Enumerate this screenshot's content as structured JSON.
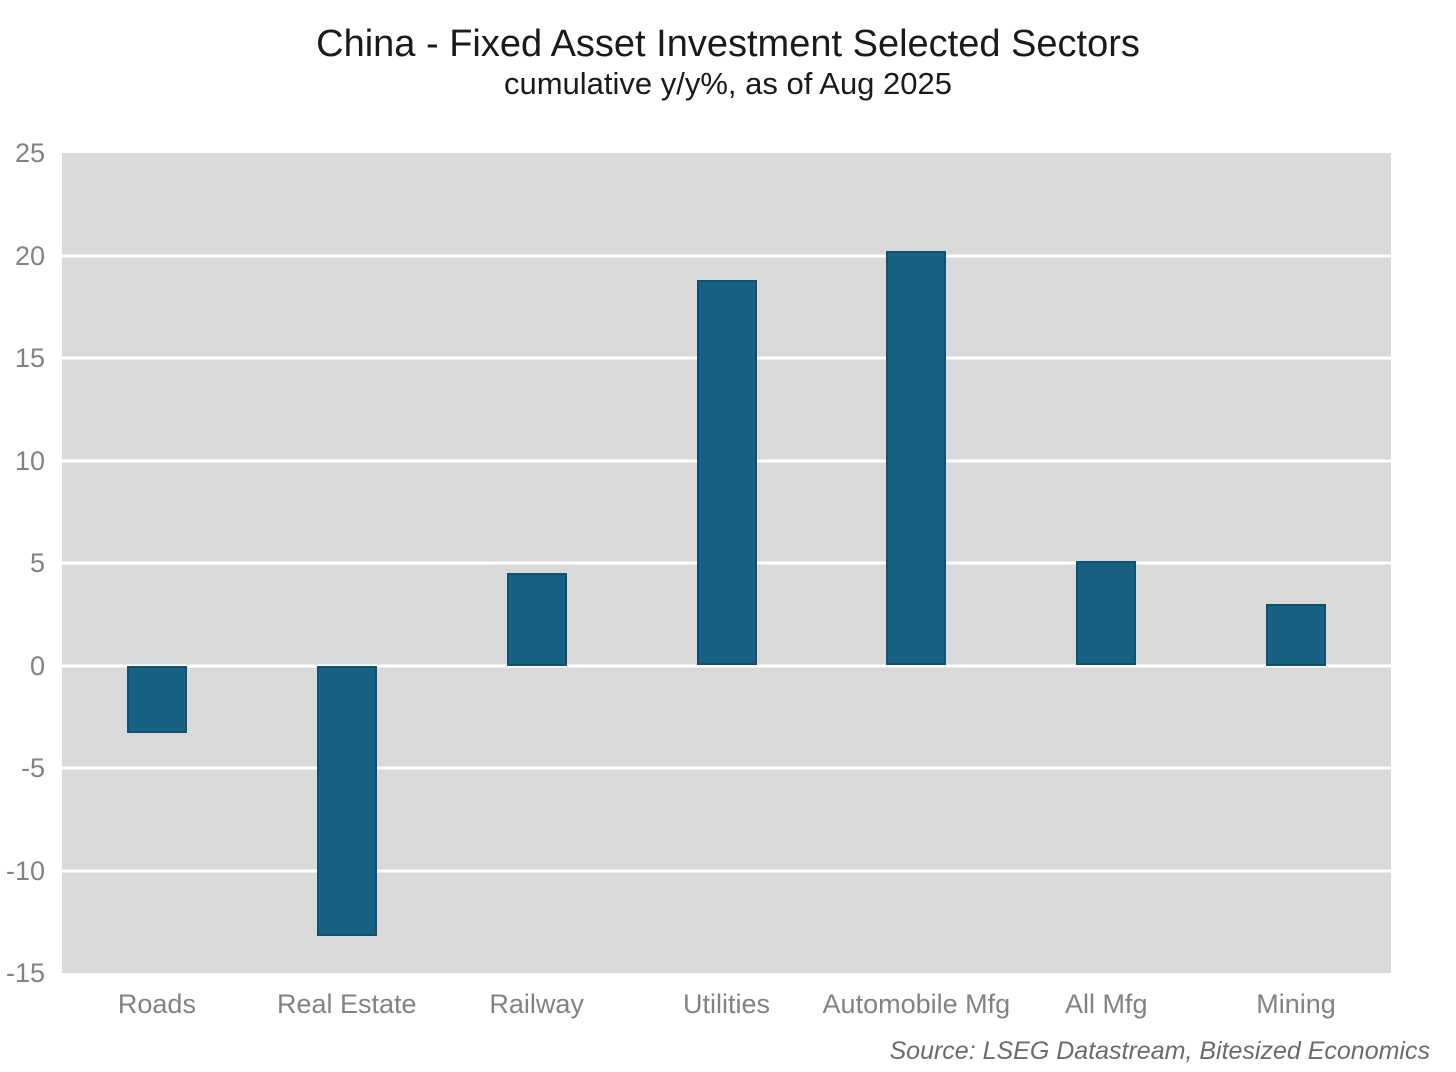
{
  "title": "China - Fixed Asset Investment Selected Sectors",
  "subtitle": "cumulative y/y%, as of Aug 2025",
  "source": "Source: LSEG Datastream, Bitesized Economics",
  "colors": {
    "bar": "#176183",
    "plot_background": "#d9d9d9",
    "gridline": "#ffffff",
    "axis_text": "#828282",
    "title_text": "#1a1a1a",
    "source_text": "#6b6b6b",
    "page_background": "#ffffff"
  },
  "chart_data": {
    "type": "bar",
    "title": "China - Fixed Asset Investment Selected Sectors",
    "subtitle": "cumulative y/y%, as of Aug 2025",
    "categories": [
      "Roads",
      "Real Estate",
      "Railway",
      "Utilities",
      "Automobile Mfg",
      "All Mfg",
      "Mining"
    ],
    "values": [
      -3.3,
      -13.2,
      4.5,
      18.8,
      20.2,
      5.1,
      3.0
    ],
    "xlabel": "",
    "ylabel": "",
    "ylim": [
      -15,
      25
    ],
    "yticks": [
      25,
      20,
      15,
      10,
      5,
      0,
      -5,
      -10,
      -15
    ],
    "grid": "horizontal white gridlines on gray band background",
    "legend_position": "none",
    "source": "Source: LSEG Datastream, Bitesized Economics"
  }
}
